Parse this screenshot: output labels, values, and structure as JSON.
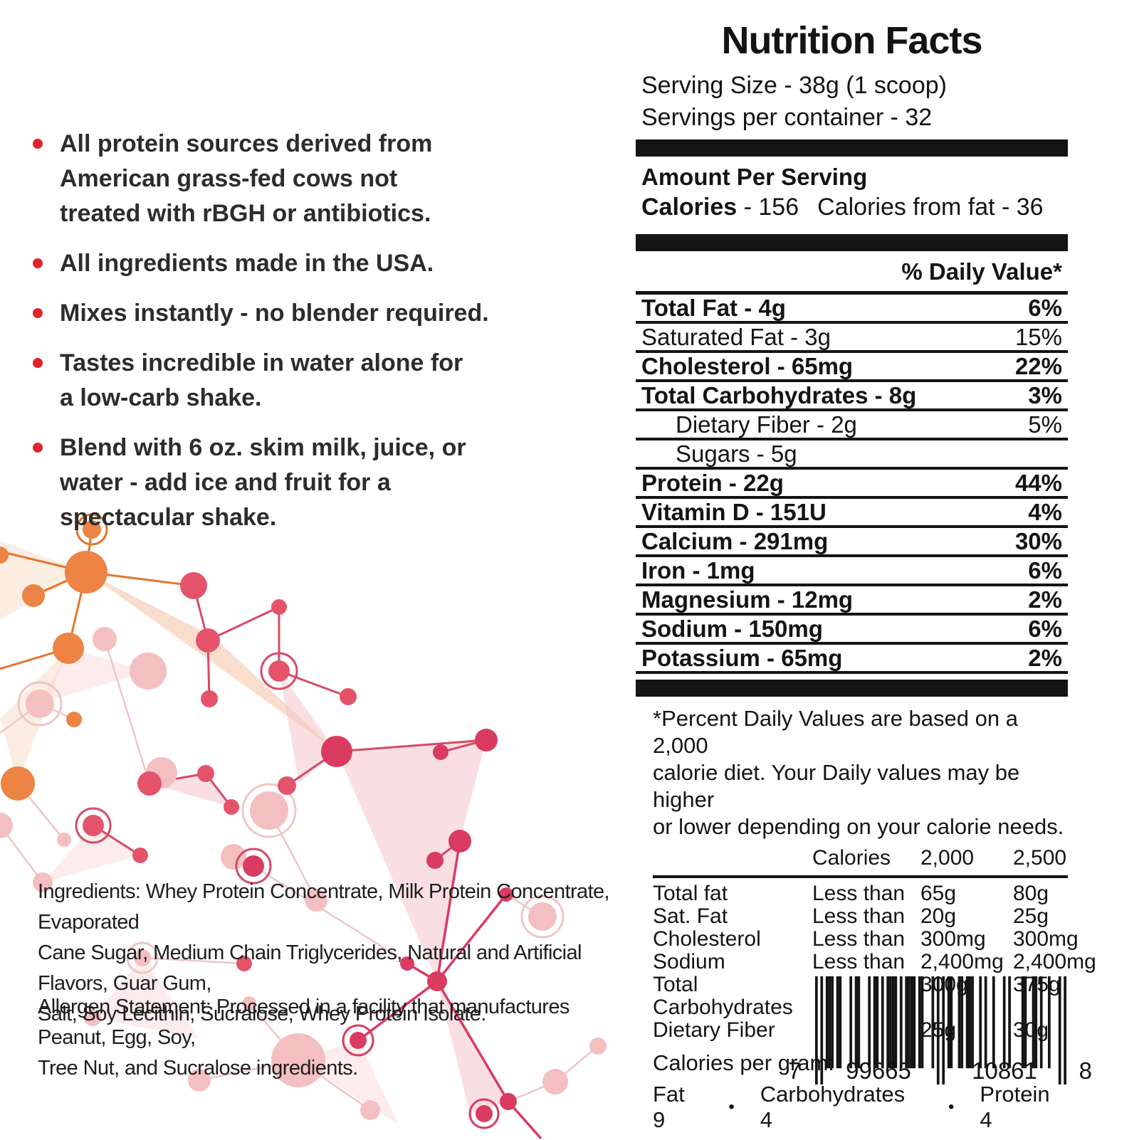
{
  "colors": {
    "bullet_red": "#e2232b",
    "panel_black": "#141414",
    "node_orange": "#ed8344",
    "node_red": "#e5536a",
    "node_crimson": "#d93b61",
    "node_pale_pink": "#f4bfc1"
  },
  "left": {
    "bullets": [
      "All protein sources derived from\nAmerican grass-fed cows not\ntreated with rBGH or antibiotics.",
      "All ingredients made in the USA.",
      "Mixes instantly - no blender required.",
      "Tastes incredible in water alone for\na low-carb shake.",
      "Blend with 6 oz. skim milk, juice, or\nwater  - add ice and fruit for a\nspectacular shake."
    ],
    "ingredients": "Ingredients: Whey Protein Concentrate, Milk Protein Concentrate, Evaporated\nCane Sugar, Medium Chain Triglycerides, Natural and Artificial Flavors, Guar Gum,\nSalt, Soy Lecithin, Sucralose, Whey Protein Isolate.",
    "allergen": "Allergen Statement: Processed in a facility that manufactures Peanut, Egg, Soy,\nTree Nut, and Sucralose ingredients."
  },
  "panel": {
    "title": "Nutrition Facts",
    "serving_size": "Serving Size - 38g (1 scoop)",
    "servings_per_container": "Servings per container - 32",
    "amount_per_serving": "Amount Per Serving",
    "calories_label": "Calories",
    "calories_value": " - 156",
    "calories_from_fat": "Calories from fat - 36",
    "daily_value_header": "% Daily Value*",
    "rows": [
      {
        "label": "Total Fat - 4g",
        "value": "6%",
        "bold": true,
        "indent": false
      },
      {
        "label": "Saturated Fat - 3g",
        "value": "15%",
        "bold": false,
        "indent": false
      },
      {
        "label": "Cholesterol - 65mg",
        "value": "22%",
        "bold": true,
        "indent": false
      },
      {
        "label": "Total Carbohydrates - 8g",
        "value": "3%",
        "bold": true,
        "indent": false
      },
      {
        "label": "Dietary Fiber - 2g",
        "value": "5%",
        "bold": false,
        "indent": true
      },
      {
        "label": "Sugars - 5g",
        "value": "",
        "bold": false,
        "indent": true
      },
      {
        "label": "Protein - 22g",
        "value": "44%",
        "bold": true,
        "indent": false
      },
      {
        "label": "Vitamin D - 151U",
        "value": "4%",
        "bold": true,
        "indent": false
      },
      {
        "label": "Calcium - 291mg",
        "value": "30%",
        "bold": true,
        "indent": false
      },
      {
        "label": "Iron - 1mg",
        "value": "6%",
        "bold": true,
        "indent": false
      },
      {
        "label": "Magnesium - 12mg",
        "value": "2%",
        "bold": true,
        "indent": false
      },
      {
        "label": "Sodium - 150mg",
        "value": "6%",
        "bold": true,
        "indent": false
      },
      {
        "label": "Potassium - 65mg",
        "value": "2%",
        "bold": true,
        "indent": false
      }
    ],
    "footnote": "*Percent Daily Values are based on a 2,000\ncalorie diet.  Your Daily values may be higher\nor lower depending on your calorie needs.",
    "dv_table": {
      "header": [
        "",
        "Calories",
        "2,000",
        "2,500"
      ],
      "rows": [
        [
          "Total fat",
          "Less than",
          "65g",
          "80g"
        ],
        [
          "Sat. Fat",
          "Less than",
          "20g",
          "25g"
        ],
        [
          "Cholesterol",
          "Less than",
          "300mg",
          "300mg"
        ],
        [
          "Sodium",
          "Less than",
          "2,400mg",
          "2,400mg"
        ],
        [
          "Total Carbohydrates",
          "",
          "300g",
          "375g"
        ],
        [
          "Dietary Fiber",
          "",
          "25g",
          "30g"
        ]
      ]
    },
    "calories_per_gram_label": "Calories per gram:",
    "calories_per_gram_items": [
      "Fat 9",
      "Carbohydrates 4",
      "Protein 4"
    ],
    "separator": "•"
  },
  "barcode": {
    "digits": "799665108618",
    "display": [
      "7",
      "99665",
      "10861",
      "8"
    ]
  }
}
